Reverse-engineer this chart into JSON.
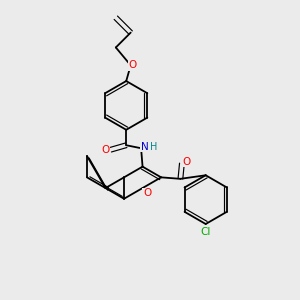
{
  "bg_color": "#ebebeb",
  "bond_color": "#000000",
  "atom_colors": {
    "O": "#ff0000",
    "N": "#0000cc",
    "Cl": "#00aa00",
    "H": "#008888",
    "C": "#000000"
  },
  "figsize": [
    3.0,
    3.0
  ],
  "dpi": 100
}
